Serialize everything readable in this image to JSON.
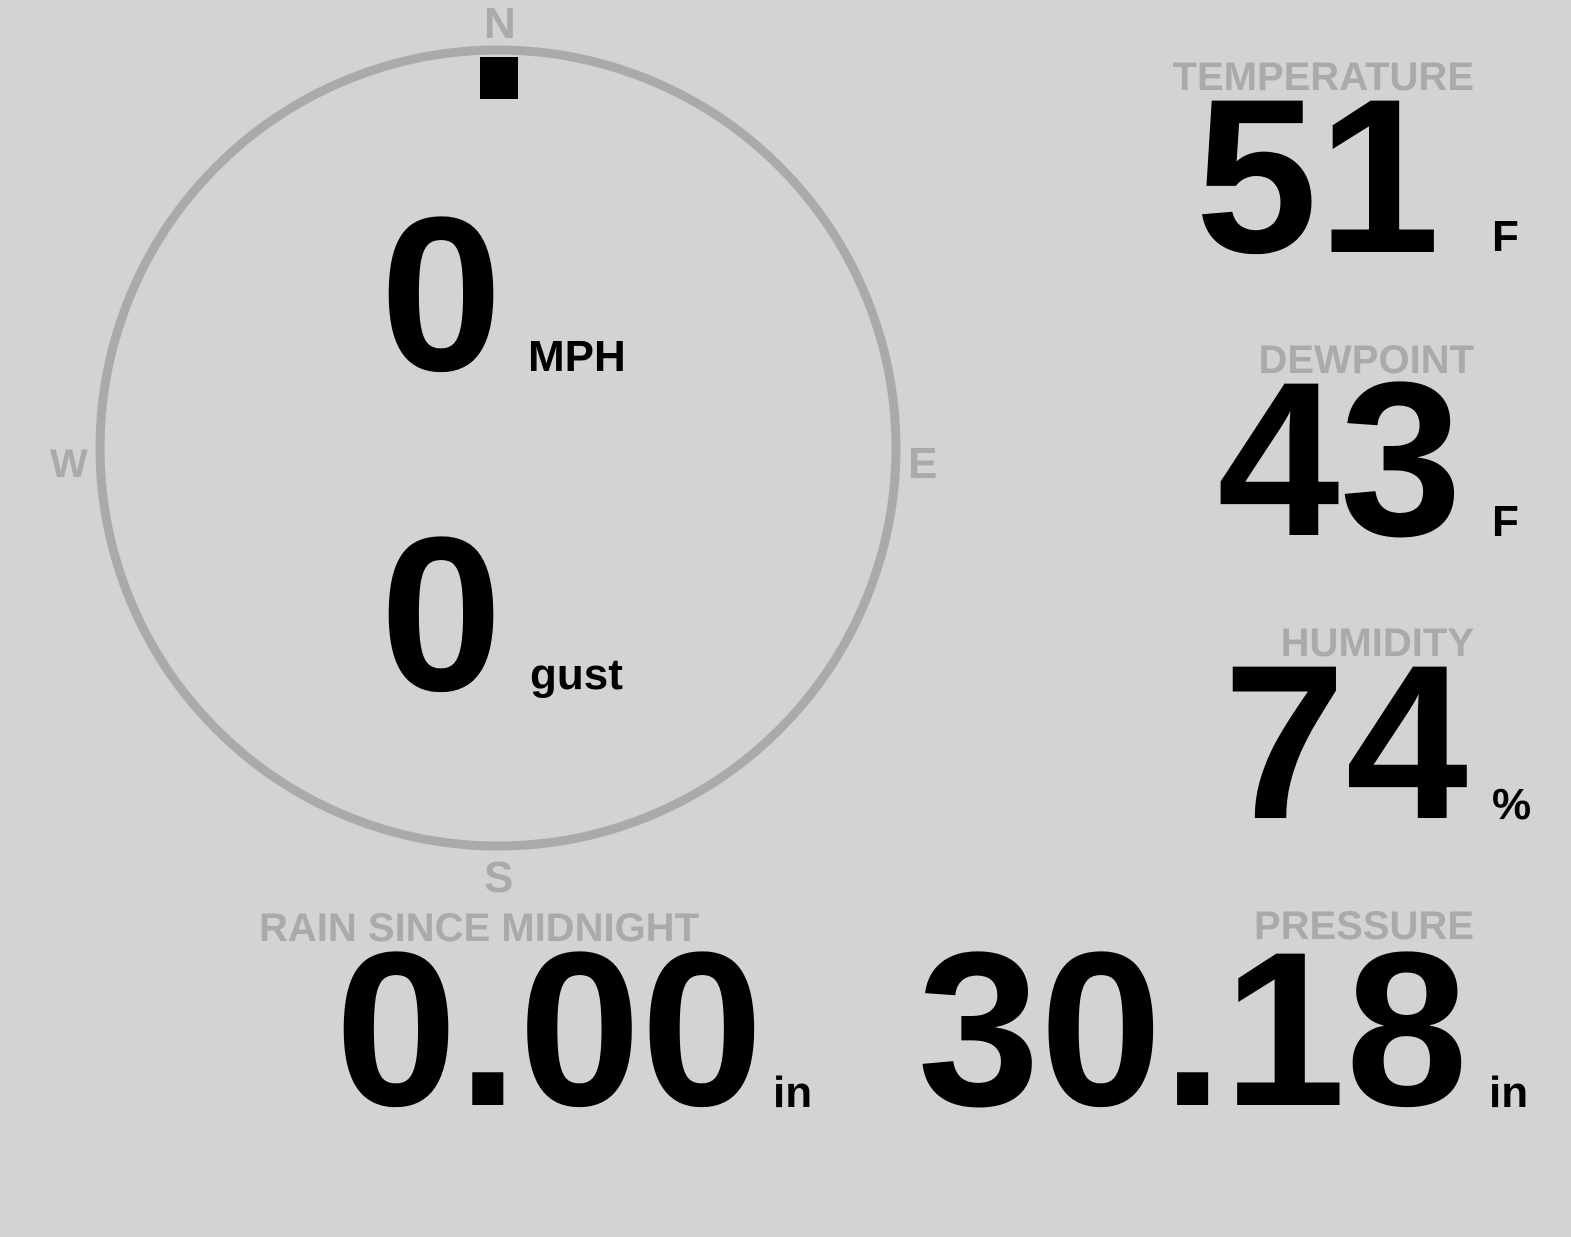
{
  "wind": {
    "direction_deg": 0,
    "speed": "0",
    "speed_unit": "MPH",
    "gust": "0",
    "gust_unit": "gust",
    "compass": {
      "n": "N",
      "e": "E",
      "s": "S",
      "w": "W"
    }
  },
  "temperature": {
    "label": "TEMPERATURE",
    "value": "51",
    "unit": "F"
  },
  "dewpoint": {
    "label": "DEWPOINT",
    "value": "43",
    "unit": "F"
  },
  "humidity": {
    "label": "HUMIDITY",
    "value": "74",
    "unit": "%"
  },
  "rain": {
    "label": "RAIN SINCE MIDNIGHT",
    "value": "0.00",
    "unit": "in"
  },
  "pressure": {
    "label": "PRESSURE",
    "value": "30.18",
    "unit": "in"
  },
  "colors": {
    "background": "#d3d3d3",
    "label": "#aaaaaa",
    "value": "#000000",
    "ring": "#aaaaaa"
  }
}
